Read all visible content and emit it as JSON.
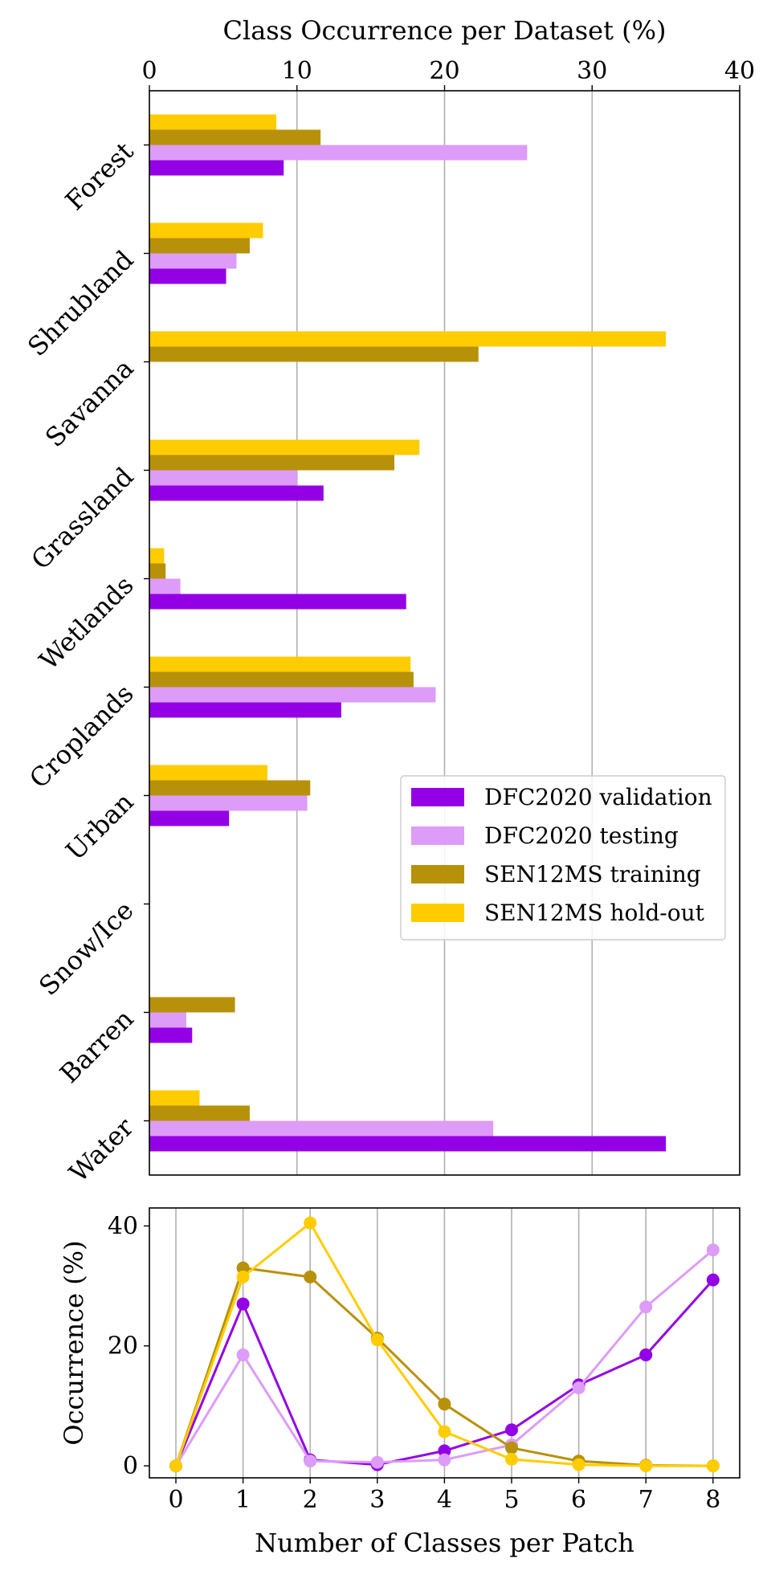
{
  "chart_data": [
    {
      "type": "bar",
      "orientation": "horizontal",
      "xlabel": "Class Occurrence per Dataset (%)",
      "xlabel_position": "top",
      "xlim": [
        0,
        40
      ],
      "xticks": [
        "0",
        "10",
        "20",
        "30",
        "40"
      ],
      "grid": "x",
      "categories": [
        "Forest",
        "Shrubland",
        "Savanna",
        "Grassland",
        "Wetlands",
        "Croplands",
        "Urban",
        "Snow/Ice",
        "Barren",
        "Water"
      ],
      "series": [
        {
          "name": "DFC2020 validation",
          "color": "#9400e6",
          "values": [
            9.1,
            5.2,
            0,
            11.8,
            17.4,
            13.0,
            5.4,
            0,
            2.9,
            35.0
          ]
        },
        {
          "name": "DFC2020 testing",
          "color": "#dd9cf7",
          "values": [
            25.6,
            5.9,
            0,
            10.0,
            2.1,
            19.4,
            10.7,
            0,
            2.5,
            23.3
          ]
        },
        {
          "name": "SEN12MS training",
          "color": "#b8910a",
          "values": [
            11.6,
            6.8,
            22.3,
            16.6,
            1.1,
            17.9,
            10.9,
            0,
            5.8,
            6.8
          ]
        },
        {
          "name": "SEN12MS hold-out",
          "color": "#ffcc00",
          "values": [
            8.6,
            7.7,
            35.0,
            18.3,
            1.0,
            17.7,
            8.0,
            0,
            0,
            3.4
          ]
        }
      ],
      "legend": "center-right"
    },
    {
      "type": "line",
      "xlabel": "Number of Classes per Patch",
      "ylabel": "Occurrence (%)",
      "x": [
        0,
        1,
        2,
        3,
        4,
        5,
        6,
        7,
        8
      ],
      "xticks": [
        "0",
        "1",
        "2",
        "3",
        "4",
        "5",
        "6",
        "7",
        "8"
      ],
      "yticks": [
        "0",
        "20",
        "40"
      ],
      "ylim": [
        -2,
        43
      ],
      "grid": "x",
      "series": [
        {
          "name": "DFC2020 validation",
          "color": "#9400e6",
          "values": [
            0,
            27.0,
            1.0,
            0.2,
            2.5,
            6.0,
            13.5,
            18.5,
            31.0
          ]
        },
        {
          "name": "DFC2020 testing",
          "color": "#dd9cf7",
          "values": [
            0,
            18.5,
            0.8,
            0.6,
            1.0,
            3.5,
            13.0,
            26.5,
            36.0
          ]
        },
        {
          "name": "SEN12MS training",
          "color": "#b8910a",
          "values": [
            0,
            33.0,
            31.5,
            21.3,
            10.3,
            3.0,
            0.8,
            0.1,
            0
          ]
        },
        {
          "name": "SEN12MS hold-out",
          "color": "#ffcc00",
          "values": [
            0,
            31.5,
            40.5,
            21.0,
            5.7,
            1.1,
            0.2,
            0,
            0
          ]
        }
      ]
    }
  ]
}
